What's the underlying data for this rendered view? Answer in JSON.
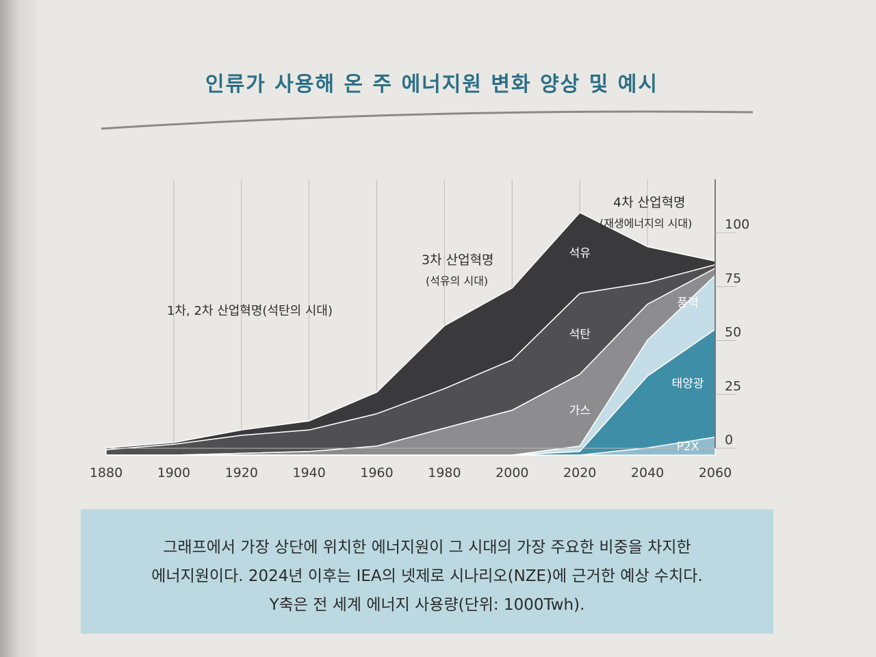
{
  "title": "인류가 사용해 온 주 에너지원 변화 양상 및 예시",
  "caption": [
    "그래프에서 가장 상단에 위치한 에너지원이 그 시대의 가장 주요한 비중을 차지한",
    "에너지원이다. 2024년 이후는 IEA의 넷제로 시나리오(NZE)에 근거한 예상 수치다.",
    "Y축은 전 세계 에너지 사용량(단위: 1000Twh)."
  ],
  "chart_data": {
    "type": "area",
    "x_ticks": [
      1880,
      1900,
      1920,
      1940,
      1960,
      1980,
      2000,
      2020,
      2040,
      2060
    ],
    "y_ticks": [
      0,
      25,
      50,
      75,
      100
    ],
    "xlim": [
      1880,
      2060
    ],
    "ylim": [
      0,
      120
    ],
    "grid": "vertical",
    "series": [
      {
        "name": "석유",
        "color": "#3a3a3c",
        "x": [
          1880,
          1900,
          1920,
          1940,
          1960,
          1980,
          2000,
          2020,
          2040,
          2060
        ],
        "y": [
          1,
          1,
          3,
          5,
          12,
          35,
          40,
          45,
          20,
          2
        ]
      },
      {
        "name": "석탄",
        "color": "#505052",
        "x": [
          1880,
          1900,
          1920,
          1940,
          1960,
          1980,
          2000,
          2020,
          2040,
          2060
        ],
        "y": [
          3,
          6,
          10,
          12,
          18,
          22,
          28,
          45,
          12,
          2
        ]
      },
      {
        "name": "가스",
        "color": "#8d8d8f",
        "x": [
          1880,
          1900,
          1920,
          1940,
          1960,
          1980,
          2000,
          2020,
          2040,
          2060
        ],
        "y": [
          0,
          0,
          1,
          2,
          5,
          15,
          25,
          40,
          20,
          4
        ]
      },
      {
        "name": "풍력",
        "color": "#c4dde6",
        "x": [
          1880,
          1900,
          1920,
          1940,
          1960,
          1980,
          2000,
          2020,
          2040,
          2060
        ],
        "y": [
          0,
          0,
          0,
          0,
          0,
          0,
          0,
          3,
          20,
          30
        ]
      },
      {
        "name": "태양광",
        "color": "#3f8ea7",
        "x": [
          1880,
          1900,
          1920,
          1940,
          1960,
          1980,
          2000,
          2020,
          2040,
          2060
        ],
        "y": [
          0,
          0,
          0,
          0,
          0,
          0,
          0,
          2,
          40,
          60
        ]
      },
      {
        "name": "P2X",
        "color": "#8fbccd",
        "x": [
          1880,
          1900,
          1920,
          1940,
          1960,
          1980,
          2000,
          2020,
          2040,
          2060
        ],
        "y": [
          0,
          0,
          0,
          0,
          0,
          0,
          0,
          0,
          4,
          10
        ]
      }
    ],
    "annotations": {
      "era12": "1차, 2차 산업혁명(석탄의 시대)",
      "era3": "3차 산업혁명",
      "era3_sub": "(석유의 시대)",
      "era4": "4차 산업혁명",
      "era4_sub": "(재생에너지의 시대)"
    }
  }
}
